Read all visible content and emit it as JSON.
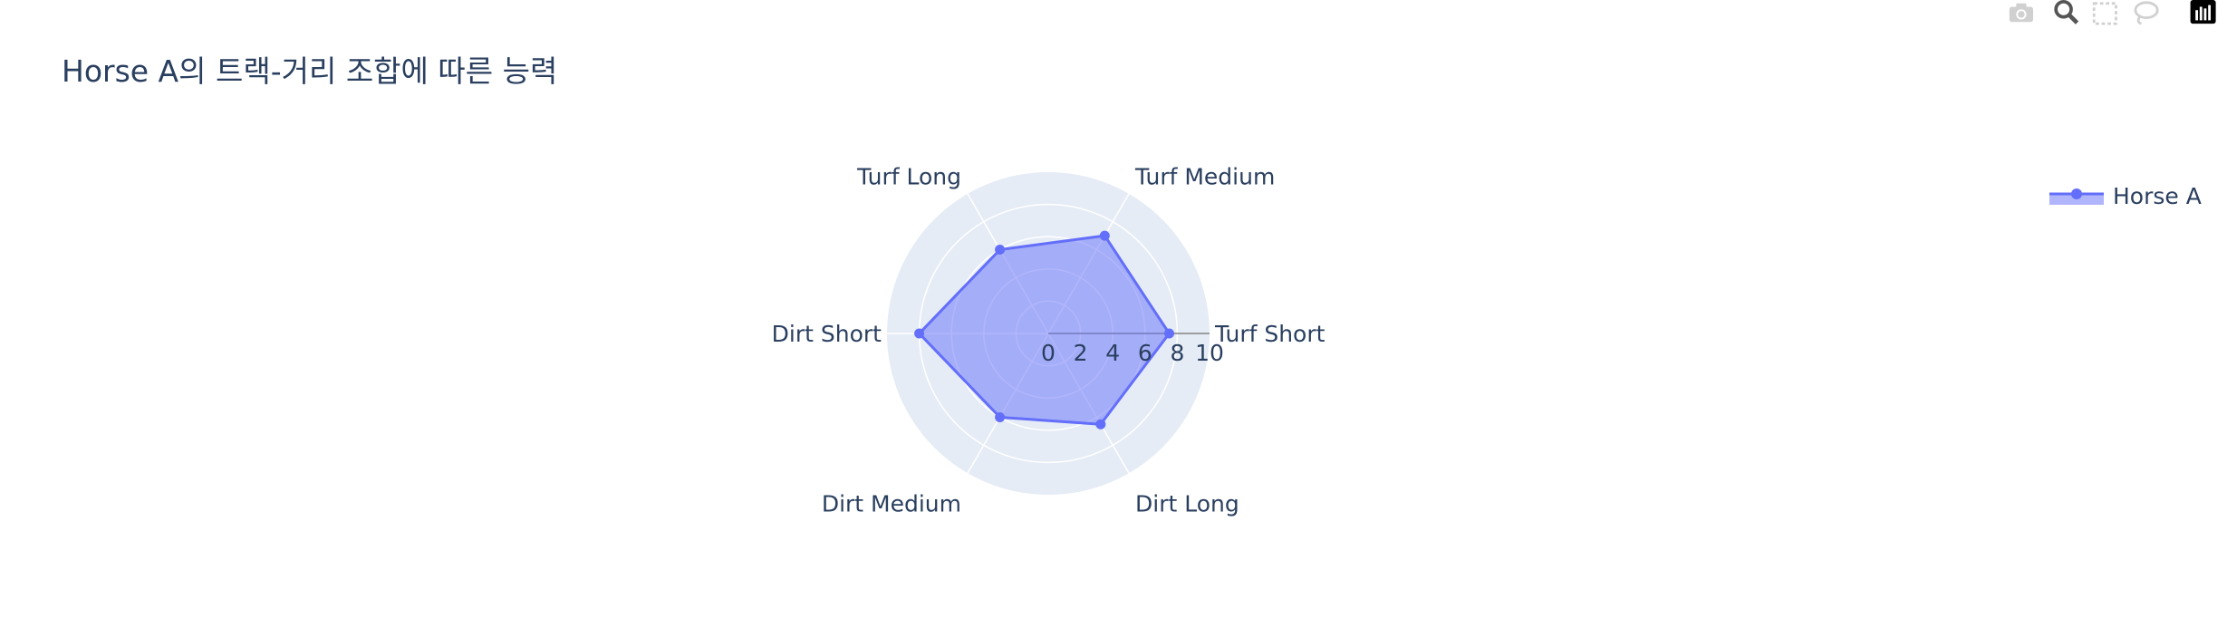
{
  "chart_title": "Horse A의 트랙-거리 조합에 따른 능력",
  "modebar": {
    "camera_icon": "camera-icon",
    "zoom_icon": "zoom-icon",
    "select_icon": "box-select-icon",
    "lasso_icon": "lasso-icon",
    "logo_icon": "plotly-logo-icon"
  },
  "colors": {
    "polar_background": "#e5ecf6",
    "grid": "#ffffff",
    "series_line": "#636efa",
    "series_fill": "rgba(99,110,250,0.5)",
    "text": "#2a3f5f",
    "modebar_icon": "#d0d0d0"
  },
  "chart_data": {
    "type": "radar",
    "title": "Horse A의 트랙-거리 조합에 따른 능력",
    "theta": [
      "Turf Short",
      "Turf Medium",
      "Turf Long",
      "Dirt Short",
      "Dirt Medium",
      "Dirt Long"
    ],
    "radial_range": [
      0,
      10
    ],
    "radial_ticks": [
      "0",
      "2",
      "4",
      "6",
      "8",
      "10"
    ],
    "grid": true,
    "series": [
      {
        "name": "Horse A",
        "values": [
          7.5,
          7.0,
          6.0,
          8.0,
          6.0,
          6.5
        ],
        "mode": "lines+markers",
        "fill": "toself"
      }
    ],
    "legend_position": "top-right"
  }
}
